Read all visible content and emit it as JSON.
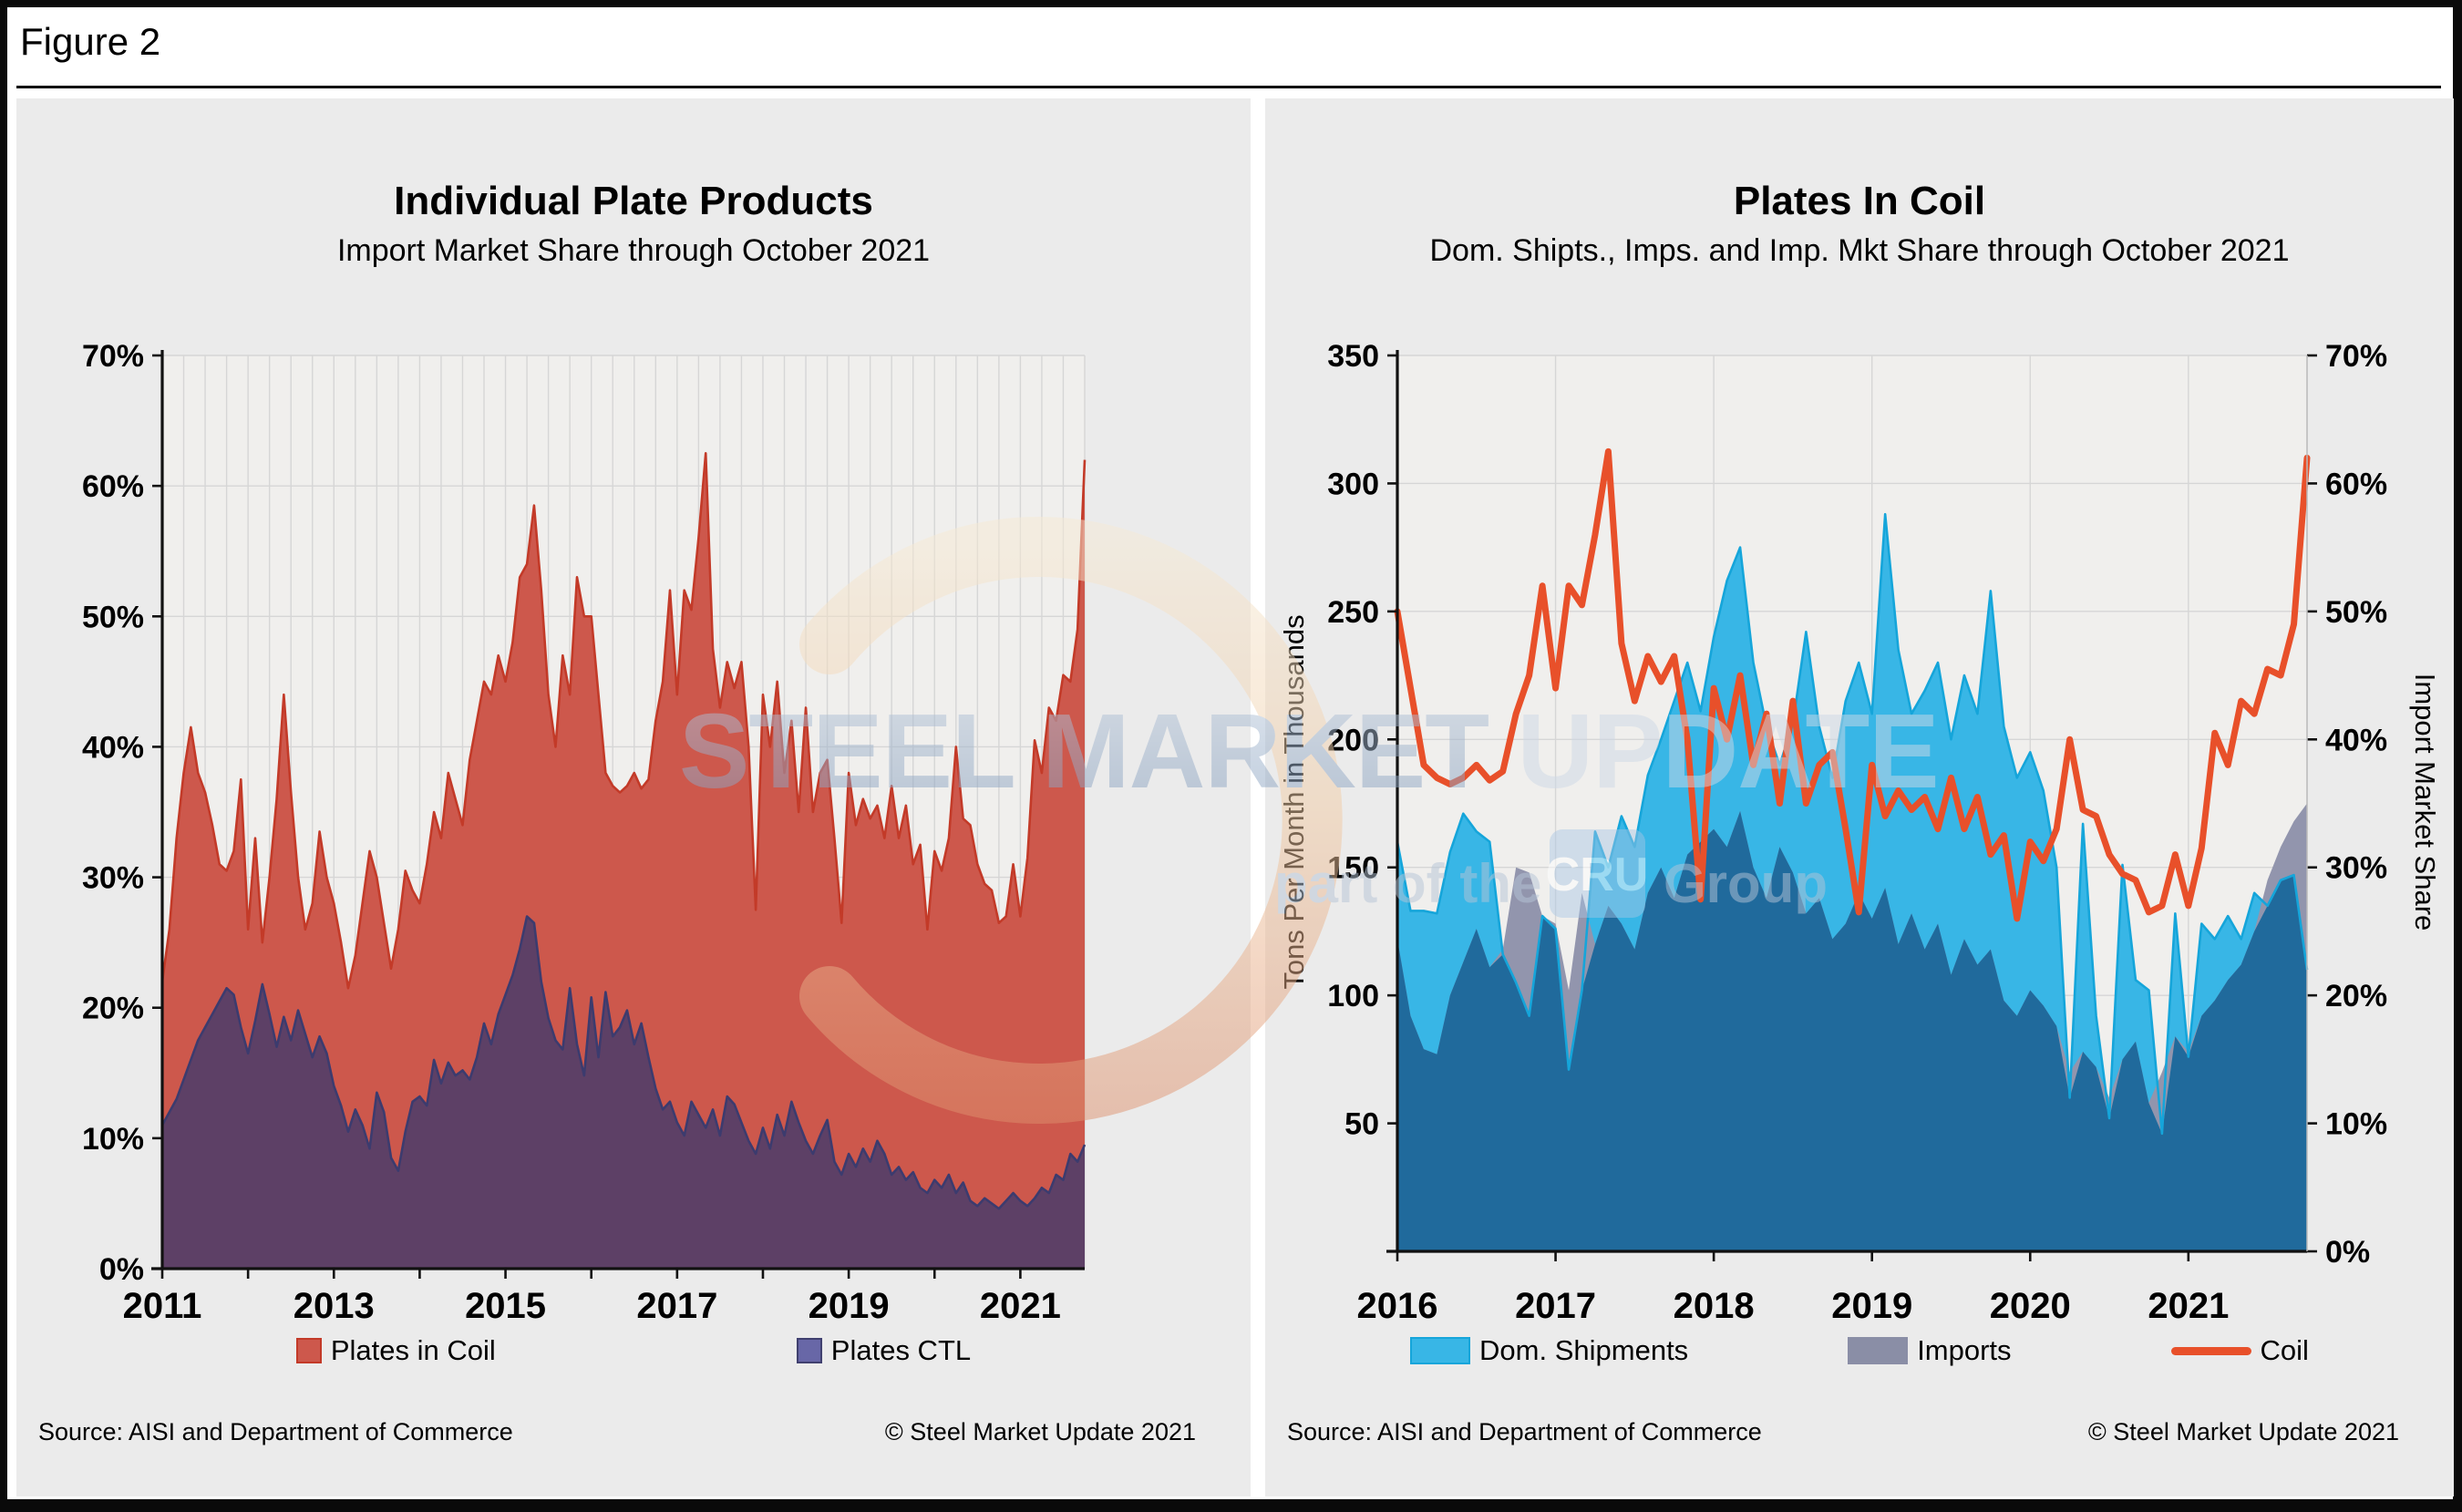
{
  "figure": {
    "label": "Figure 2"
  },
  "watermark": {
    "brand_bold": "STEEL MARKET",
    "brand_light": " UPDATE",
    "tagline_pre": "part of the",
    "tagline_box": "CRU",
    "tagline_post": "Group"
  },
  "chart_data": [
    {
      "type": "area",
      "title": "Individual Plate Products",
      "subtitle": "Import Market Share through October 2021",
      "start_year": 2011,
      "x_tick_years": [
        2011,
        2013,
        2015,
        2017,
        2019,
        2021
      ],
      "y_left": {
        "min": 0,
        "max": 70,
        "step": 10,
        "suffix": "%",
        "omit_zero": false
      },
      "minor_vgrid_months": 3,
      "grid_on": true,
      "legend_position": "bottom",
      "series": [
        {
          "name": "Plates in Coil",
          "type": "area",
          "axis": "left",
          "fill": "#cd584c",
          "line": "#c33a28",
          "values": [
            22,
            26,
            33,
            38,
            41.5,
            38,
            36.5,
            34,
            31,
            30.5,
            32,
            37.5,
            26,
            33,
            25,
            30,
            36,
            44,
            36.5,
            30,
            26,
            28,
            33.5,
            30,
            28,
            25,
            21.5,
            24,
            28,
            32,
            30,
            26.5,
            23,
            26,
            30.5,
            29,
            28,
            31,
            35,
            33,
            38,
            36,
            34,
            39,
            42,
            45,
            44,
            47,
            45,
            48,
            53,
            54,
            58.5,
            52,
            44,
            40,
            47,
            44,
            53,
            50,
            50,
            44,
            38,
            37,
            36.5,
            37,
            38,
            36.8,
            37.5,
            42,
            45,
            52,
            44,
            52,
            50.5,
            56,
            62.5,
            47.5,
            43,
            46.5,
            44.5,
            46.5,
            40,
            27.5,
            44,
            40,
            45,
            38,
            42,
            35,
            43,
            35,
            38,
            39,
            33,
            26.5,
            38,
            34,
            36,
            34.5,
            35.5,
            33,
            37,
            33,
            35.5,
            31,
            32.5,
            26,
            32,
            30.5,
            33,
            40,
            34.5,
            34,
            31,
            29.5,
            29,
            26.5,
            27,
            31,
            27,
            31.5,
            40.5,
            38,
            43,
            42,
            45.5,
            45,
            49,
            62
          ]
        },
        {
          "name": "Plates CTL",
          "type": "area",
          "axis": "left",
          "fill": "#5d4066",
          "line": "#3c3b6e",
          "values": [
            11,
            12,
            13,
            14.5,
            16,
            17.5,
            18.5,
            19.5,
            20.5,
            21.5,
            21,
            18.5,
            16.5,
            19,
            21.8,
            19.5,
            17,
            19.3,
            17.5,
            19.8,
            18,
            16.2,
            17.8,
            16.5,
            14,
            12.5,
            10.5,
            12.2,
            11,
            9.2,
            13.5,
            12,
            8.5,
            7.5,
            10.5,
            12.8,
            13.2,
            12.5,
            16,
            14.2,
            15.8,
            14.8,
            15.2,
            14.5,
            16.2,
            18.8,
            17.2,
            19.5,
            21,
            22.5,
            24.5,
            27,
            26.5,
            22,
            19.2,
            17.5,
            16.8,
            21.5,
            17.2,
            14.8,
            20.8,
            16.2,
            21.2,
            17.8,
            18.5,
            19.8,
            17.2,
            18.8,
            16.2,
            13.8,
            12.2,
            12.8,
            11.2,
            10.2,
            12.8,
            11.8,
            10.8,
            12.2,
            10.2,
            13.2,
            12.6,
            11.2,
            9.8,
            8.8,
            10.8,
            9.2,
            11.8,
            10.2,
            12.8,
            11.2,
            9.8,
            8.8,
            10.2,
            11.4,
            8.2,
            7.2,
            8.8,
            7.8,
            9.2,
            8.2,
            9.8,
            8.8,
            7.2,
            7.8,
            6.8,
            7.4,
            6.2,
            5.8,
            6.8,
            6.2,
            7.2,
            5.8,
            6.6,
            5.2,
            4.8,
            5.4,
            5,
            4.6,
            5.2,
            5.8,
            5.2,
            4.8,
            5.4,
            6.2,
            5.8,
            7.2,
            6.8,
            8.8,
            8.2,
            9.5
          ]
        }
      ],
      "legend": [
        {
          "label": "Plates in Coil",
          "swatch": "#cd584c",
          "border": "#c33a28",
          "shape": "square"
        },
        {
          "label": "Plates CTL",
          "swatch": "#6867a7",
          "border": "#40406f",
          "shape": "square"
        }
      ],
      "source": "Source: AISI and Department of Commerce",
      "copyright": "© Steel Market Update 2021"
    },
    {
      "type": "area+line",
      "title": "Plates In Coil",
      "subtitle": "Dom. Shipts., Imps. and Imp. Mkt Share through October 2021",
      "start_year": 2016,
      "x_tick_years": [
        2016,
        2017,
        2018,
        2019,
        2020,
        2021
      ],
      "y_left": {
        "min": 0,
        "max": 350,
        "step": 50,
        "suffix": "",
        "omit_zero": true,
        "title": "Tons Per Month in Thousands"
      },
      "y_right": {
        "min": 0,
        "max": 70,
        "step": 10,
        "suffix": "%",
        "title": "Import Market Share"
      },
      "minor_vgrid_months": 12,
      "grid_on": true,
      "legend_position": "bottom",
      "overlap_fill": "#206a9c",
      "series": [
        {
          "name": "Dom. Shipments",
          "type": "area",
          "axis": "left",
          "fill": "#38b6e6",
          "line": "#15a5da",
          "values": [
            160,
            133,
            133,
            132,
            156,
            171,
            164,
            160,
            116,
            105,
            92,
            131,
            126,
            71,
            102,
            164,
            150,
            170,
            158,
            186,
            200,
            215,
            230,
            211,
            240,
            262,
            275,
            230,
            205,
            190,
            206,
            242,
            205,
            185,
            215,
            230,
            210,
            288,
            235,
            210,
            219,
            230,
            200,
            225,
            210,
            258,
            205,
            185,
            195,
            180,
            150,
            60,
            167,
            92,
            52,
            151,
            106,
            102,
            46,
            132,
            76,
            128,
            122,
            131,
            122,
            140,
            135,
            145,
            147,
            110
          ]
        },
        {
          "name": "Imports",
          "type": "area",
          "axis": "left",
          "fill": "#9295ad",
          "line": "#9295ad",
          "values": [
            122,
            92,
            79,
            77,
            100,
            113,
            126,
            111,
            118,
            150,
            148,
            131,
            128,
            102,
            140,
            120,
            135,
            128,
            118,
            140,
            150,
            138,
            155,
            160,
            165,
            158,
            172,
            150,
            138,
            158,
            148,
            132,
            138,
            122,
            128,
            140,
            130,
            142,
            120,
            132,
            118,
            128,
            108,
            122,
            112,
            118,
            98,
            92,
            102,
            96,
            88,
            70,
            78,
            72,
            60,
            75,
            82,
            58,
            70,
            84,
            78,
            92,
            98,
            106,
            112,
            125,
            145,
            158,
            168,
            175
          ]
        },
        {
          "name": "Coil",
          "type": "line",
          "axis": "right",
          "line": "#e8502a",
          "width": 7,
          "values": [
            50,
            44,
            38,
            37,
            36.5,
            37,
            38,
            36.8,
            37.5,
            42,
            45,
            52,
            44,
            52,
            50.5,
            56,
            62.5,
            47.5,
            43,
            46.5,
            44.5,
            46.5,
            40,
            27.5,
            44,
            40,
            45,
            38,
            42,
            35,
            43,
            35,
            38,
            39,
            33,
            26.5,
            38,
            34,
            36,
            34.5,
            35.5,
            33,
            37,
            33,
            35.5,
            31,
            32.5,
            26,
            32,
            30.5,
            33,
            40,
            34.5,
            34,
            31,
            29.5,
            29,
            26.5,
            27,
            31,
            27,
            31.5,
            40.5,
            38,
            43,
            42,
            45.5,
            45,
            49,
            62
          ]
        }
      ],
      "legend": [
        {
          "label": "Dom. Shipments",
          "swatch": "#38b6e6",
          "border": "#15a5da",
          "shape": "rect"
        },
        {
          "label": "Imports",
          "swatch": "#8a8ea6",
          "border": "#8a8ea6",
          "shape": "rect"
        },
        {
          "label": "Coil",
          "swatch": "#e8502a",
          "border": "#e8502a",
          "shape": "line"
        }
      ],
      "source": "Source: AISI and Department of Commerce",
      "copyright": "© Steel Market Update 2021"
    }
  ]
}
